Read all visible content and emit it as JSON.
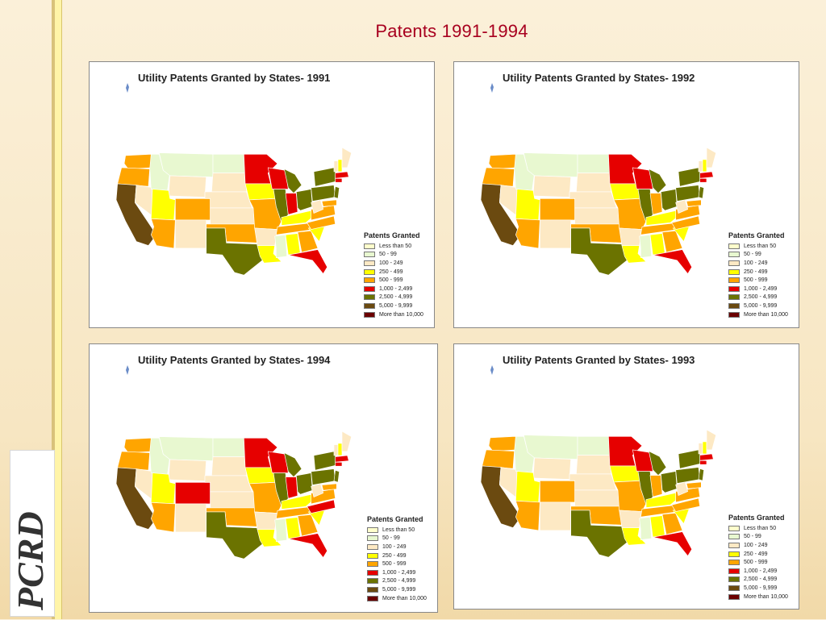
{
  "title": "Patents 1991-1994",
  "logo_text": "PCRD",
  "legend_title": "Patents Granted",
  "legend": [
    {
      "label": "Less than 50",
      "color": "#ffffcc"
    },
    {
      "label": "50 - 99",
      "color": "#e8f8d0"
    },
    {
      "label": "100 - 249",
      "color": "#fde9c4"
    },
    {
      "label": "250 - 499",
      "color": "#ffff00"
    },
    {
      "label": "500 - 999",
      "color": "#ffa500"
    },
    {
      "label": "1,000 - 2,499",
      "color": "#e60000"
    },
    {
      "label": "2,500 - 4,999",
      "color": "#6b7300"
    },
    {
      "label": "5,000 - 9,999",
      "color": "#6b4a10"
    },
    {
      "label": "More than 10,000",
      "color": "#6b0000"
    }
  ],
  "panels": [
    {
      "title": "Utility Patents Granted by States- 1991",
      "year": "1991"
    },
    {
      "title": "Utility Patents Granted by States- 1992",
      "year": "1992"
    },
    {
      "title": "Utility Patents Granted by States- 1994",
      "year": "1994"
    },
    {
      "title": "Utility Patents Granted by States- 1993",
      "year": "1993"
    }
  ]
}
